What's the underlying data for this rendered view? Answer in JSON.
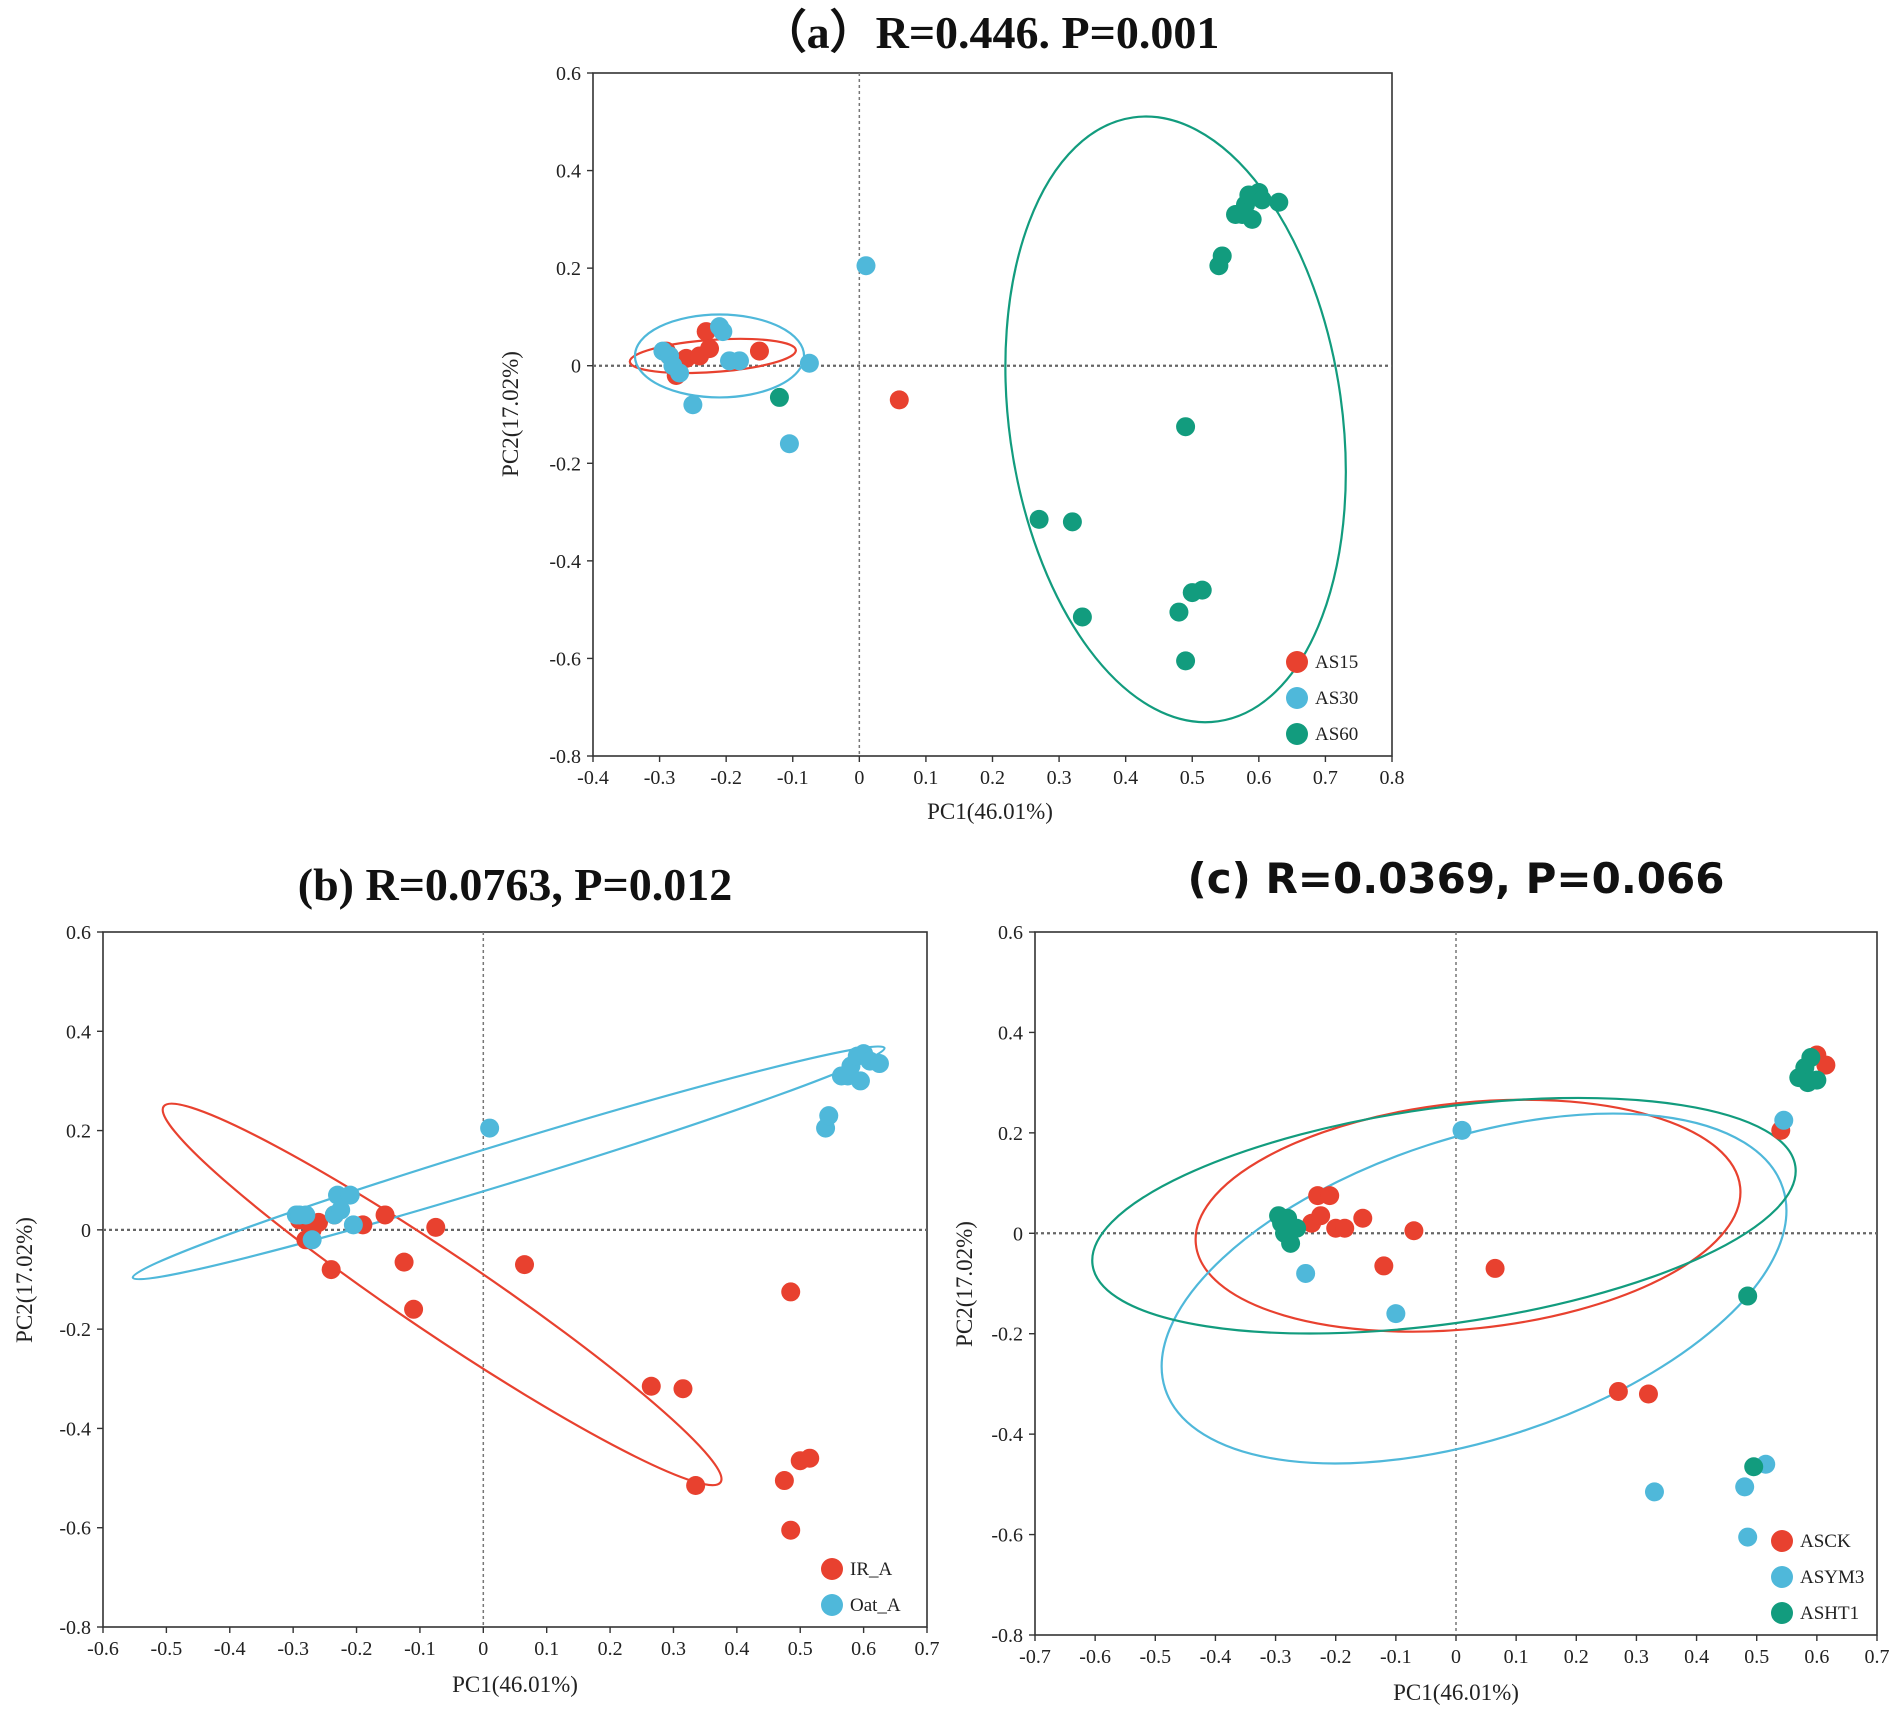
{
  "colors": {
    "red": "#E8412F",
    "blue": "#4FB8DA",
    "green": "#129C7E"
  },
  "chart_data": [
    {
      "id": "a",
      "type": "scatter",
      "title": "（a）R=0.446. P=0.001",
      "xlabel": "PC1(46.01%)",
      "ylabel": "PC2(17.02%)",
      "xlim": [
        -0.4,
        0.8
      ],
      "ylim": [
        -0.8,
        0.6
      ],
      "xticks": [
        -0.4,
        -0.3,
        -0.2,
        -0.1,
        0,
        0.1,
        0.2,
        0.3,
        0.4,
        0.5,
        0.6,
        0.7,
        0.8
      ],
      "yticks": [
        -0.8,
        -0.6,
        -0.4,
        -0.2,
        0,
        0.2,
        0.4,
        0.6
      ],
      "legend_position": "bottom-right",
      "series": [
        {
          "name": "AS15",
          "color": "red",
          "points": [
            [
              -0.29,
              0.03
            ],
            [
              -0.285,
              0.02
            ],
            [
              -0.275,
              -0.02
            ],
            [
              -0.26,
              0.015
            ],
            [
              -0.24,
              0.02
            ],
            [
              -0.23,
              0.07
            ],
            [
              -0.225,
              0.035
            ],
            [
              -0.15,
              0.03
            ],
            [
              0.06,
              -0.07
            ]
          ],
          "ellipse": {
            "cx": -0.22,
            "cy": 0.02,
            "rx": 0.125,
            "ry": 0.033,
            "angle": -4
          }
        },
        {
          "name": "AS30",
          "color": "blue",
          "points": [
            [
              -0.295,
              0.03
            ],
            [
              -0.285,
              0.02
            ],
            [
              -0.28,
              0.0
            ],
            [
              -0.27,
              -0.015
            ],
            [
              -0.25,
              -0.08
            ],
            [
              -0.21,
              0.08
            ],
            [
              -0.205,
              0.07
            ],
            [
              -0.195,
              0.01
            ],
            [
              -0.18,
              0.01
            ],
            [
              -0.105,
              -0.16
            ],
            [
              -0.075,
              0.005
            ],
            [
              0.01,
              0.205
            ]
          ],
          "ellipse": {
            "cx": -0.21,
            "cy": 0.02,
            "rx": 0.127,
            "ry": 0.085,
            "angle": 0
          }
        },
        {
          "name": "AS60",
          "color": "green",
          "points": [
            [
              -0.12,
              -0.065
            ],
            [
              0.27,
              -0.315
            ],
            [
              0.32,
              -0.32
            ],
            [
              0.335,
              -0.515
            ],
            [
              0.48,
              -0.505
            ],
            [
              0.49,
              -0.125
            ],
            [
              0.49,
              -0.605
            ],
            [
              0.5,
              -0.465
            ],
            [
              0.515,
              -0.46
            ],
            [
              0.54,
              0.205
            ],
            [
              0.545,
              0.225
            ],
            [
              0.565,
              0.31
            ],
            [
              0.575,
              0.31
            ],
            [
              0.58,
              0.33
            ],
            [
              0.585,
              0.35
            ],
            [
              0.59,
              0.3
            ],
            [
              0.6,
              0.355
            ],
            [
              0.605,
              0.34
            ],
            [
              0.63,
              0.335
            ]
          ],
          "ellipse": {
            "cx": 0.475,
            "cy": -0.11,
            "rx": 0.25,
            "ry": 0.625,
            "angle": -8
          }
        }
      ]
    },
    {
      "id": "b",
      "type": "scatter",
      "title": "(b) R=0.0763, P=0.012",
      "xlabel": "PC1(46.01%)",
      "ylabel": "PC2(17.02%)",
      "xlim": [
        -0.6,
        0.7
      ],
      "ylim": [
        -0.8,
        0.6
      ],
      "xticks": [
        -0.6,
        -0.5,
        -0.4,
        -0.3,
        -0.2,
        -0.1,
        0,
        0.1,
        0.2,
        0.3,
        0.4,
        0.5,
        0.6,
        0.7
      ],
      "yticks": [
        -0.8,
        -0.6,
        -0.4,
        -0.2,
        0,
        0.2,
        0.4,
        0.6
      ],
      "legend_position": "bottom-right",
      "series": [
        {
          "name": "IR_A",
          "color": "red",
          "points": [
            [
              -0.29,
              0.02
            ],
            [
              -0.28,
              -0.02
            ],
            [
              -0.27,
              0.0
            ],
            [
              -0.26,
              0.015
            ],
            [
              -0.24,
              -0.08
            ],
            [
              -0.235,
              0.03
            ],
            [
              -0.19,
              0.01
            ],
            [
              -0.155,
              0.03
            ],
            [
              -0.125,
              -0.065
            ],
            [
              -0.11,
              -0.16
            ],
            [
              -0.075,
              0.005
            ],
            [
              0.065,
              -0.07
            ],
            [
              0.265,
              -0.315
            ],
            [
              0.315,
              -0.32
            ],
            [
              0.335,
              -0.515
            ],
            [
              0.475,
              -0.505
            ],
            [
              0.485,
              -0.125
            ],
            [
              0.485,
              -0.605
            ],
            [
              0.5,
              -0.465
            ],
            [
              0.515,
              -0.46
            ]
          ],
          "ellipse": {
            "cx": -0.065,
            "cy": -0.13,
            "rx": 0.53,
            "ry": 0.08,
            "angle": 34
          }
        },
        {
          "name": "Oat_A",
          "color": "blue",
          "points": [
            [
              -0.295,
              0.03
            ],
            [
              -0.29,
              0.03
            ],
            [
              -0.28,
              0.03
            ],
            [
              -0.27,
              -0.02
            ],
            [
              -0.235,
              0.03
            ],
            [
              -0.23,
              0.07
            ],
            [
              -0.225,
              0.04
            ],
            [
              -0.21,
              0.07
            ],
            [
              -0.205,
              0.01
            ],
            [
              0.01,
              0.205
            ],
            [
              0.54,
              0.205
            ],
            [
              0.545,
              0.23
            ],
            [
              0.565,
              0.31
            ],
            [
              0.575,
              0.31
            ],
            [
              0.58,
              0.33
            ],
            [
              0.59,
              0.35
            ],
            [
              0.595,
              0.3
            ],
            [
              0.6,
              0.355
            ],
            [
              0.61,
              0.34
            ],
            [
              0.625,
              0.335
            ]
          ],
          "ellipse": {
            "cx": 0.04,
            "cy": 0.135,
            "rx": 0.62,
            "ry": 0.04,
            "angle": -17
          }
        }
      ]
    },
    {
      "id": "c",
      "type": "scatter",
      "title": "(c) R=0.0369, P=0.066",
      "xlabel": "PC1(46.01%)",
      "ylabel": "PC2(17.02%)",
      "xlim": [
        -0.7,
        0.7
      ],
      "ylim": [
        -0.8,
        0.6
      ],
      "xticks": [
        -0.7,
        -0.6,
        -0.5,
        -0.4,
        -0.3,
        -0.2,
        -0.1,
        0,
        0.1,
        0.2,
        0.3,
        0.4,
        0.5,
        0.6,
        0.7
      ],
      "yticks": [
        -0.8,
        -0.6,
        -0.4,
        -0.2,
        0,
        0.2,
        0.4,
        0.6
      ],
      "legend_position": "bottom-right",
      "series": [
        {
          "name": "ASCK",
          "color": "red",
          "points": [
            [
              -0.24,
              0.02
            ],
            [
              -0.23,
              0.075
            ],
            [
              -0.225,
              0.035
            ],
            [
              -0.21,
              0.075
            ],
            [
              -0.2,
              0.01
            ],
            [
              -0.185,
              0.01
            ],
            [
              -0.155,
              0.03
            ],
            [
              -0.12,
              -0.065
            ],
            [
              -0.07,
              0.005
            ],
            [
              0.065,
              -0.07
            ],
            [
              0.27,
              -0.315
            ],
            [
              0.32,
              -0.32
            ],
            [
              0.54,
              0.205
            ],
            [
              0.6,
              0.355
            ],
            [
              0.615,
              0.335
            ]
          ],
          "ellipse": {
            "cx": 0.02,
            "cy": 0.035,
            "rx": 0.455,
            "ry": 0.225,
            "angle": -6
          }
        },
        {
          "name": "ASYM3",
          "color": "blue",
          "points": [
            [
              -0.25,
              -0.08
            ],
            [
              -0.1,
              -0.16
            ],
            [
              0.01,
              0.205
            ],
            [
              0.33,
              -0.515
            ],
            [
              0.48,
              -0.505
            ],
            [
              0.485,
              -0.605
            ],
            [
              0.515,
              -0.46
            ],
            [
              0.545,
              0.225
            ]
          ],
          "ellipse": {
            "cx": 0.03,
            "cy": -0.11,
            "rx": 0.54,
            "ry": 0.3,
            "angle": -18
          }
        },
        {
          "name": "ASHT1",
          "color": "green",
          "points": [
            [
              -0.295,
              0.035
            ],
            [
              -0.29,
              0.02
            ],
            [
              -0.285,
              0.0
            ],
            [
              -0.28,
              0.03
            ],
            [
              -0.275,
              -0.02
            ],
            [
              -0.265,
              0.01
            ],
            [
              0.485,
              -0.125
            ],
            [
              0.495,
              -0.465
            ],
            [
              0.57,
              0.31
            ],
            [
              0.58,
              0.33
            ],
            [
              0.585,
              0.3
            ],
            [
              0.59,
              0.35
            ],
            [
              0.6,
              0.305
            ]
          ],
          "ellipse": {
            "cx": -0.02,
            "cy": 0.035,
            "rx": 0.59,
            "ry": 0.215,
            "angle": -8
          }
        }
      ]
    }
  ]
}
